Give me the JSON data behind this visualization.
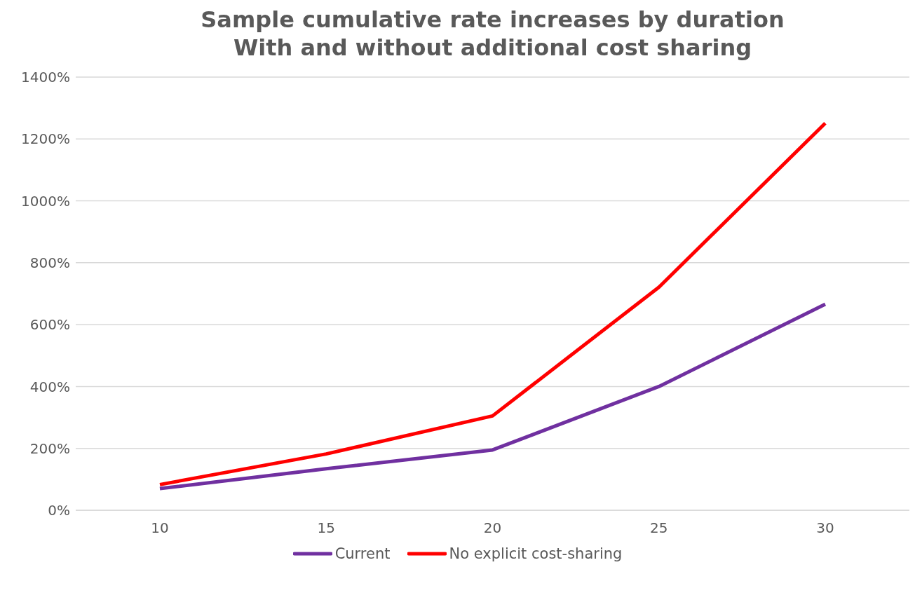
{
  "chart_data": {
    "type": "line",
    "title": "Sample cumulative rate increases by duration\nWith and without additional cost sharing",
    "categories": [
      "10",
      "15",
      "20",
      "25",
      "30"
    ],
    "series": [
      {
        "name": "Current",
        "color": "#7030a0",
        "values": [
          70,
          134,
          195,
          400,
          666
        ]
      },
      {
        "name": "No explicit cost-sharing",
        "color": "#ff0000",
        "values": [
          83,
          182,
          305,
          721,
          1251
        ]
      }
    ],
    "ylim": [
      0,
      1400
    ],
    "yticks": [
      {
        "value": 0,
        "label": "0%"
      },
      {
        "value": 200,
        "label": "200%"
      },
      {
        "value": 400,
        "label": "400%"
      },
      {
        "value": 600,
        "label": "600%"
      },
      {
        "value": 800,
        "label": "800%"
      },
      {
        "value": 1000,
        "label": "1000%"
      },
      {
        "value": 1200,
        "label": "1200%"
      },
      {
        "value": 1400,
        "label": "1400%"
      }
    ],
    "grid": "y",
    "legend": "bottom",
    "marker": "none",
    "line_style": "solid"
  }
}
